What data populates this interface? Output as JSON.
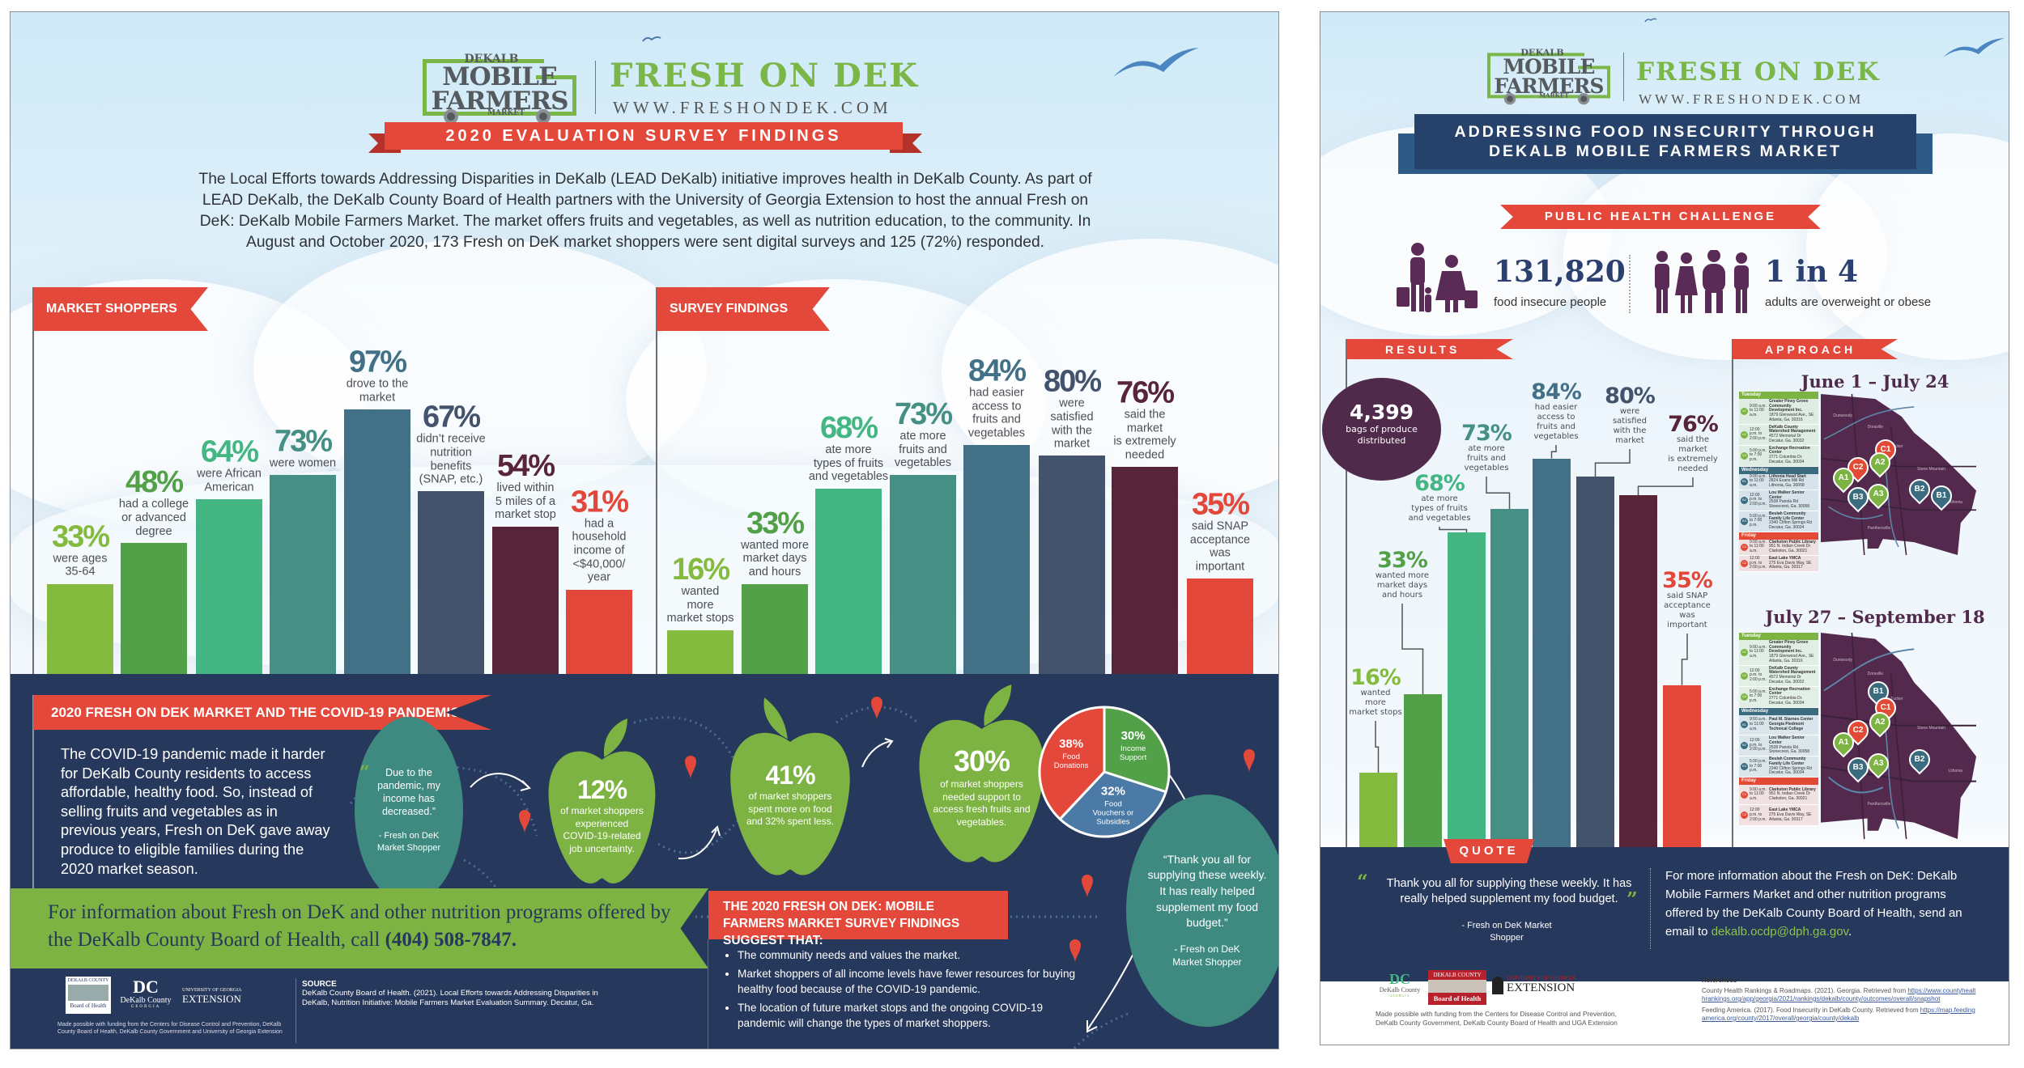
{
  "left": {
    "logo": {
      "line1": "DEKALB",
      "line2": "MOBILE",
      "line3": "FARMERS",
      "line4": "MARKET"
    },
    "brand": "FRESH ON DEK",
    "url": "WWW.FRESHONDEK.COM",
    "banner": "2020 EVALUATION SURVEY FINDINGS",
    "intro": "The Local Efforts towards Addressing Disparities in DeKalb (LEAD DeKalb) initiative improves health in DeKalb County. As part of LEAD DeKalb, the DeKalb County Board of Health partners with the University of Georgia Extension to host the annual Fresh on DeK: DeKalb Mobile Farmers Market. The market offers fruits and vegetables, as well as nutrition education, to the community. In August and October 2020, 173 Fresh on DeK market shoppers were sent digital surveys and 125 (72%) responded.",
    "covid": {
      "banner": "2020 FRESH ON DEK MARKET AND THE COVID-19 PANDEMIC",
      "paragraph": "The COVID-19 pandemic made it harder for DeKalb County residents to access affordable, healthy food. So, instead of selling fruits and vegetables as in previous years, Fresh on DeK gave away produce to eligible families during the 2020 market season.",
      "quote1": "Due to the pandemic, my income has decreased.”",
      "quote1_by": "- Fresh on DeK Market Shopper",
      "stat1": {
        "value": "12%",
        "text": "of market shoppers experienced COVID-19-related job uncertainty."
      },
      "stat2": {
        "value": "41%",
        "text": "of market shoppers spent more on food and 32% spent less."
      },
      "stat3": {
        "value": "30%",
        "text": "of market shoppers needed support to access fresh fruits and vegetables."
      },
      "quote2": "“Thank you all for supplying these weekly. It has really helped supplement my food budget.”",
      "quote2_by": "- Fresh on DeK Market Shopper"
    },
    "info_banner": {
      "text": "For information about Fresh on DeK and other nutrition programs offered by the DeKalb County Board of Health, call ",
      "phone": "(404) 508-7847."
    },
    "findings": {
      "title": "THE 2020 FRESH ON DEK: MOBILE FARMERS MARKET SURVEY FINDINGS SUGGEST THAT:",
      "bullets": [
        "The community needs and values the market.",
        "Market shoppers of all income levels have fewer resources for buying healthy food because of the COVID-19 pandemic.",
        "The location of future market stops and the ongoing COVID-19 pandemic will change the types of market shoppers."
      ]
    },
    "footer": {
      "logo_boh_top": "DEKALB COUNTY",
      "logo_boh_bottom": "Board of Health",
      "logo_dc": "DeKalb County",
      "logo_dc_sub": "GEORGIA",
      "logo_uga_top": "UNIVERSITY OF GEORGIA",
      "logo_uga": "EXTENSION",
      "funding": "Made possible with funding from the Centers for Disease Control and Prevention, DeKalb County Board of Health, DeKalb County Government and University of Georgia Extension",
      "source_label": "SOURCE",
      "source": "DeKalb County Board of Health. (2021). Local Efforts towards Addressing Disparities in DeKalb, Nutrition Initiative: Mobile Farmers Market Evaluation Summary. Decatur, Ga."
    }
  },
  "right": {
    "logo": {
      "line1": "DEKALB",
      "line2": "MOBILE",
      "line3": "FARMERS",
      "line4": "MARKET"
    },
    "brand": "FRESH ON DEK",
    "url": "WWW.FRESHONDEK.COM",
    "banner_line1": "ADDRESSING FOOD INSECURITY THROUGH",
    "banner_line2": "DEKALB MOBILE FARMERS MARKET",
    "challenge": "PUBLIC HEALTH CHALLENGE",
    "stat_a": {
      "value": "131,820",
      "label": "food insecure people"
    },
    "stat_b": {
      "value": "1 in 4",
      "label": "adults are overweight or obese"
    },
    "results_flag": "RESULTS",
    "bags": {
      "value": "4,399",
      "label": "bags of produce distributed"
    },
    "approach_flag": "APPROACH",
    "schedules": [
      {
        "title": "June 1 – July 24",
        "days": [
          {
            "day": "Tuesday",
            "color": "#7cb342",
            "rows": [
              {
                "pin": "A1",
                "time": "9:00 a.m. to 11:00 a.m.",
                "name": "Greater Piney Grove Community Development Inc.",
                "addr": "1879 Glenwood Ave., SE Atlanta, Ga. 30316"
              },
              {
                "pin": "A2",
                "time": "12:00 p.m. to 2:00 p.m.",
                "name": "DeKalb County Watershed Management",
                "addr": "4572 Memorial Dr Decatur, Ga. 30032"
              },
              {
                "pin": "A3",
                "time": "5:00 p.m. to 7:00 p.m.",
                "name": "Exchange Recreation Center",
                "addr": "2771 Columbia Dr. Decatur, Ga. 30034"
              }
            ]
          },
          {
            "day": "Wednesday",
            "color": "#3a6b7e",
            "rows": [
              {
                "pin": "B1",
                "time": "9:00 a.m. to 11:00 a.m.",
                "name": "Lithonia Head Start",
                "addr": "2824 Evans Mill Rd Lithonia, Ga. 30058"
              },
              {
                "pin": "B2",
                "time": "12:00 p.m. to 2:00 p.m.",
                "name": "Lou Walker Senior Center",
                "addr": "2538 Panola Rd Stonecrest, Ga. 30058"
              },
              {
                "pin": "B3",
                "time": "5:00 p.m. to 7:00 p.m.",
                "name": "Beulah Community Family Life Center",
                "addr": "2340 Clifton Springs Rd Decatur, Ga. 30034"
              }
            ]
          },
          {
            "day": "Friday",
            "color": "#e34a36",
            "rows": [
              {
                "pin": "C1",
                "time": "9:00 a.m. to 11:00 a.m.",
                "name": "Clarkston Public Library",
                "addr": "951 N. Indian Creek Dr Clarkston, Ga. 30021"
              },
              {
                "pin": "C2",
                "time": "12:00 p.m. to 2:00 p.m.",
                "name": "East Lake YMCA",
                "addr": "275 Eva Davis Way, SE Atlanta, Ga. 30317"
              }
            ]
          }
        ],
        "pins": [
          "C1",
          "A2",
          "C2",
          "A1",
          "B3",
          "A3",
          "B2",
          "B1"
        ]
      },
      {
        "title": "July 27 – September 18",
        "days": [
          {
            "day": "Tuesday",
            "color": "#7cb342",
            "rows": [
              {
                "pin": "A1",
                "time": "9:00 a.m. to 11:00 a.m.",
                "name": "Greater Piney Grove Community Development Inc.",
                "addr": "1879 Glenwood Ave., SE Atlanta, Ga. 30316"
              },
              {
                "pin": "A2",
                "time": "12:00 p.m. to 2:00 p.m.",
                "name": "DeKalb County Watershed Management",
                "addr": "4572 Memorial Dr Decatur, Ga. 30032"
              },
              {
                "pin": "A3",
                "time": "5:00 p.m. to 7:00 p.m.",
                "name": "Exchange Recreation Center",
                "addr": "2771 Columbia Dr. Decatur, Ga. 30034"
              }
            ]
          },
          {
            "day": "Wednesday",
            "color": "#3a6b7e",
            "rows": [
              {
                "pin": "B1",
                "time": "9:00 a.m. to 11:00 a.m.",
                "name": "Paul M. Starnes Center Georgia Piedmont Technical College",
                "addr": ""
              },
              {
                "pin": "B2",
                "time": "12:00 p.m. to 2:00 p.m.",
                "name": "Lou Walker Senior Center",
                "addr": "2538 Panola Rd Stonecrest, Ga. 30058"
              },
              {
                "pin": "B3",
                "time": "5:00 p.m. to 7:00 p.m.",
                "name": "Beulah Community Family Life Center",
                "addr": "2340 Clifton Springs Rd Decatur, Ga. 30034"
              }
            ]
          },
          {
            "day": "Friday",
            "color": "#e34a36",
            "rows": [
              {
                "pin": "C1",
                "time": "9:00 a.m. to 11:00 a.m.",
                "name": "Clarkston Public Library",
                "addr": "951 N. Indian Creek Dr Clarkston, Ga. 30021"
              },
              {
                "pin": "C2",
                "time": "12:00 p.m. to 2:00 p.m.",
                "name": "East Lake YMCA",
                "addr": "275 Eva Davis Way, SE Atlanta, Ga. 30317"
              }
            ]
          }
        ],
        "pins": [
          "B1",
          "C1",
          "A2",
          "C2",
          "A1",
          "B3",
          "A3",
          "B2"
        ]
      }
    ],
    "map_places": [
      "Dunwoody",
      "Doraville",
      "Tucker",
      "Stone Mountain",
      "Lithonia",
      "Panthersville"
    ],
    "quote_tab": "QUOTE",
    "quote": "Thank you all for supplying these weekly. It has really helped supplement my food budget.",
    "quote_by": "- Fresh on DeK Market Shopper",
    "info": "For more information about the Fresh on DeK: DeKalb Mobile Farmers Market and other nutrition programs offered by the DeKalb County Board of Health, send an email to ",
    "email": "dekalb.ocdp@dph.ga.gov",
    "footer": {
      "logo_dc": "DeKalb County",
      "logo_dc_sub": "GEORGIA",
      "logo_boh_top": "DEKALB COUNTY",
      "logo_boh_bottom": "Board of Health",
      "logo_uga_top": "UNIVERSITY OF GEORGIA",
      "logo_uga": "EXTENSION",
      "funding": "Made possible with funding from the Centers for Disease Control and Prevention, DeKalb County Government, DeKalb County Board of Health and UGA Extension",
      "refs_title": "References",
      "ref1": "County Health Rankings & Roadmaps. (2021). Georgia. Retrieved from ",
      "ref1_link": "https://www.countyhealthrankings.org/app/georgia/2021/rankings/dekalb/county/outcomes/overall/snapshot",
      "ref2": "Feeding America. (2017). Food Insecurity in DeKalb County. Retrieved from ",
      "ref2_link": "https://map.feedingamerica.org/county/2017/overall/georgia/county/dekalb"
    }
  },
  "bar_colors": [
    "#84bb3f",
    "#52a047",
    "#43b683",
    "#458f84",
    "#427187",
    "#43536c",
    "#582438",
    "#e3473a"
  ],
  "colors": {
    "red": "#e3483a",
    "navy": "#26385b",
    "green": "#7cb342",
    "teal": "#3f8a80",
    "purple": "#4f2a4b",
    "blue": "#4b7aa6"
  },
  "chart_data": [
    {
      "type": "bar",
      "title": "MARKET SHOPPERS",
      "ylim": [
        0,
        100
      ],
      "categories": [
        "were ages\n35-64",
        "had a college\nor advanced\ndegree",
        "were African\nAmerican",
        "were women",
        "drove to the\nmarket",
        "didn’t receive\nnutrition\nbenefits\n(SNAP, etc.)",
        "lived within\n5 miles of a\nmarket stop",
        "had a\nhousehold\nincome of\n<$40,000/\nyear"
      ],
      "values": [
        33,
        48,
        64,
        73,
        97,
        67,
        54,
        31
      ]
    },
    {
      "type": "bar",
      "title": "SURVEY FINDINGS",
      "ylim": [
        0,
        100
      ],
      "categories": [
        "wanted\nmore\nmarket stops",
        "wanted more\nmarket days\nand hours",
        "ate more\ntypes of fruits\nand vegetables",
        "ate more\nfruits and\nvegetables",
        "had easier\naccess to\nfruits and\nvegetables",
        "were\nsatisfied\nwith the\nmarket",
        "said the\nmarket\nis extremely\nneeded",
        "said SNAP\nacceptance\nwas\nimportant"
      ],
      "values": [
        16,
        33,
        68,
        73,
        84,
        80,
        76,
        35
      ]
    },
    {
      "type": "bar",
      "title": "RESULTS",
      "ylim": [
        0,
        100
      ],
      "categories": [
        "wanted\nmore\nmarket stops",
        "wanted more\nmarket days\nand hours",
        "ate more\ntypes of fruits\nand vegetables",
        "ate more\nfruits and\nvegetables",
        "had easier\naccess to\nfruits and\nvegetables",
        "were\nsatisfied\nwith the\nmarket",
        "said the\nmarket\nis extremely\nneeded",
        "said SNAP\nacceptance\nwas\nimportant"
      ],
      "values": [
        16,
        33,
        68,
        73,
        84,
        80,
        76,
        35
      ]
    },
    {
      "type": "pie",
      "categories": [
        "Income\nSupport",
        "Food\nVouchers or\nSubsidies",
        "Food\nDonations"
      ],
      "values": [
        30,
        32,
        38
      ],
      "colors": [
        "#52a047",
        "#4b7aa6",
        "#e3483a"
      ]
    }
  ]
}
